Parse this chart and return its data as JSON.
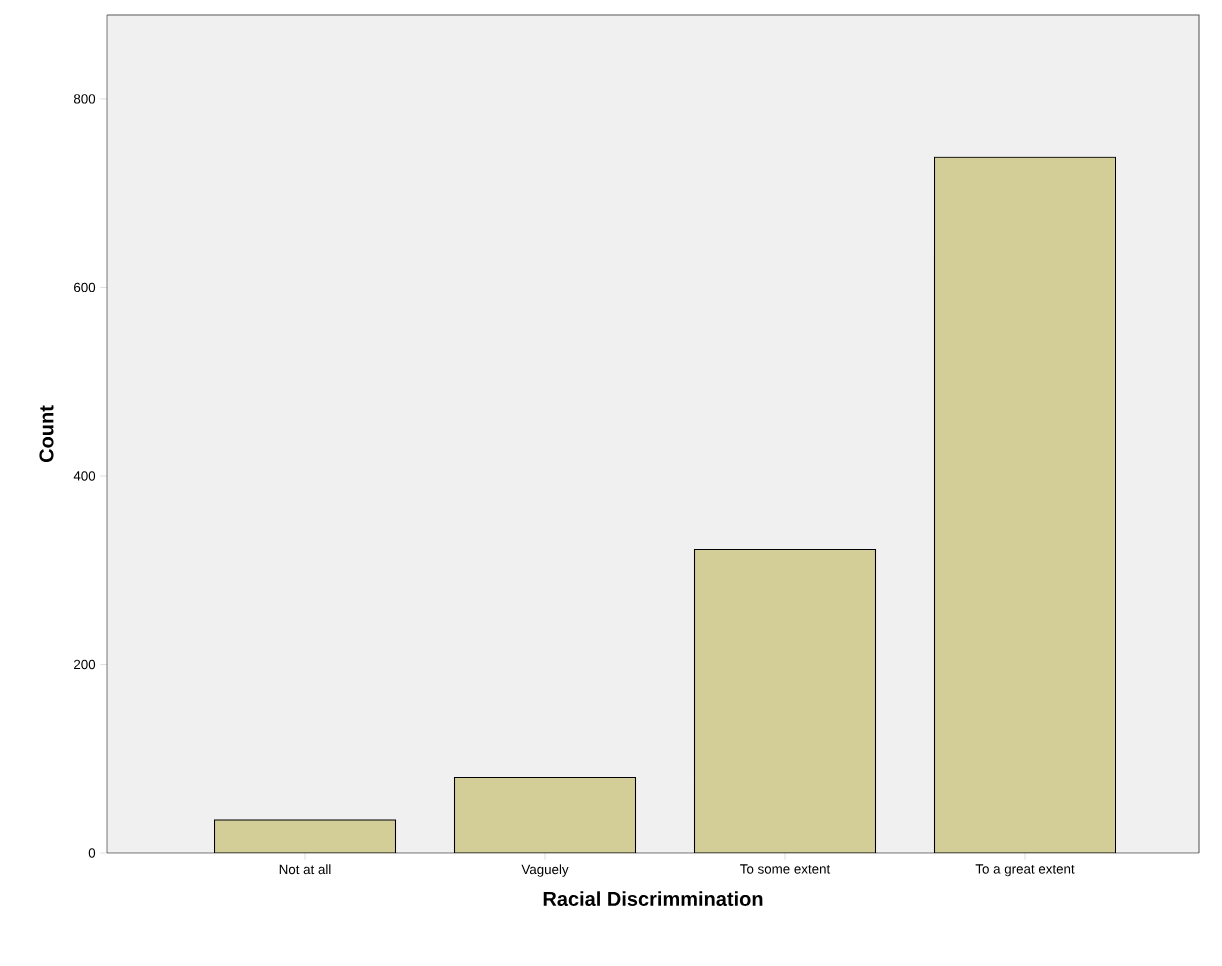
{
  "chart_data": {
    "type": "bar",
    "xlabel": "Racial Discrimmination",
    "ylabel": "Count",
    "categories": [
      "Not at all",
      "Vaguely",
      "To some extent",
      "To a great extent"
    ],
    "values": [
      35,
      80,
      322,
      738
    ],
    "color": "#d3ce97",
    "ylim": [
      0,
      889
    ],
    "yticks": [
      0,
      200,
      400,
      600,
      800
    ]
  }
}
